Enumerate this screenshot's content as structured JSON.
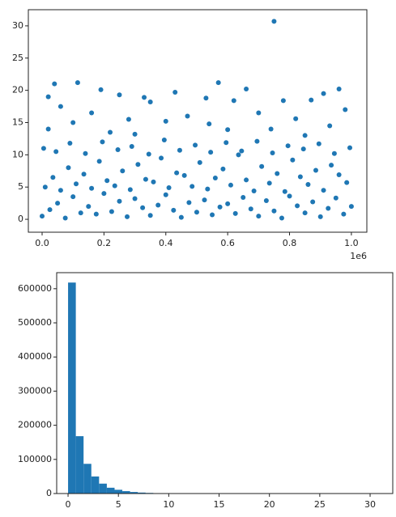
{
  "chart_data": [
    {
      "type": "scatter",
      "color": "#1f77b4",
      "x_offset_label": "1e6",
      "xlim": [
        -44500,
        1050000
      ],
      "ylim": [
        -2,
        32.5
      ],
      "xticks": [
        {
          "value": 0,
          "label": "0.0"
        },
        {
          "value": 200000,
          "label": "0.2"
        },
        {
          "value": 400000,
          "label": "0.4"
        },
        {
          "value": 600000,
          "label": "0.6"
        },
        {
          "value": 800000,
          "label": "0.8"
        },
        {
          "value": 1000000,
          "label": "1.0"
        }
      ],
      "yticks": [
        0,
        5,
        10,
        15,
        20,
        25,
        30
      ],
      "x": [
        750000,
        570000,
        115000,
        40000,
        960000,
        660000,
        190000,
        430000,
        20000,
        250000,
        330000,
        530000,
        780000,
        870000,
        620000,
        910000,
        350000,
        980000,
        60000,
        160000,
        470000,
        700000,
        280000,
        820000,
        100000,
        400000,
        540000,
        930000,
        20000,
        600000,
        740000,
        220000,
        300000,
        850000,
        0,
        25000,
        50000,
        75000,
        100000,
        125000,
        150000,
        175000,
        200000,
        225000,
        250000,
        275000,
        300000,
        325000,
        350000,
        375000,
        400000,
        425000,
        450000,
        475000,
        500000,
        525000,
        550000,
        575000,
        600000,
        625000,
        650000,
        675000,
        700000,
        725000,
        750000,
        775000,
        800000,
        825000,
        850000,
        875000,
        900000,
        925000,
        950000,
        975000,
        1000000,
        10000,
        35000,
        60000,
        85000,
        110000,
        135000,
        160000,
        185000,
        210000,
        235000,
        260000,
        285000,
        310000,
        335000,
        360000,
        385000,
        410000,
        435000,
        460000,
        485000,
        510000,
        535000,
        560000,
        585000,
        610000,
        635000,
        660000,
        685000,
        710000,
        735000,
        760000,
        785000,
        810000,
        835000,
        860000,
        885000,
        910000,
        935000,
        960000,
        985000,
        5000,
        45000,
        90000,
        140000,
        195000,
        245000,
        290000,
        345000,
        395000,
        445000,
        495000,
        545000,
        595000,
        645000,
        695000,
        745000,
        795000,
        845000,
        895000,
        945000,
        995000
      ],
      "y": [
        30.7,
        21.2,
        21.2,
        21,
        20.2,
        20.2,
        20.1,
        19.7,
        19,
        19.3,
        18.9,
        18.8,
        18.4,
        18.5,
        18.4,
        19.5,
        18.2,
        17,
        17.5,
        16.5,
        16,
        16.5,
        15.5,
        15.6,
        15,
        15.2,
        14.8,
        14.5,
        14,
        13.9,
        14,
        13.5,
        13.2,
        13,
        0.5,
        1.5,
        2.5,
        0.2,
        3.5,
        1,
        2,
        0.8,
        4,
        1.2,
        2.8,
        0.4,
        3.2,
        1.8,
        0.6,
        2.2,
        3.8,
        1.4,
        0.3,
        2.6,
        1.1,
        3,
        0.7,
        1.9,
        2.4,
        0.9,
        3.4,
        1.6,
        0.5,
        2.9,
        1.3,
        0.2,
        3.6,
        2.1,
        1,
        2.7,
        0.4,
        1.7,
        3.3,
        0.8,
        2,
        5,
        6.5,
        4.5,
        8,
        5.5,
        7,
        4.8,
        9,
        6,
        5.2,
        7.5,
        4.6,
        8.5,
        6.2,
        5.8,
        9.5,
        4.9,
        7.2,
        6.8,
        5.1,
        8.8,
        4.7,
        6.4,
        7.8,
        5.3,
        10,
        6.1,
        4.4,
        8.2,
        5.6,
        7.1,
        4.3,
        9.2,
        6.6,
        5.4,
        7.6,
        4.5,
        8.4,
        6.9,
        5.7,
        11,
        10.5,
        11.8,
        10.2,
        12,
        10.8,
        11.3,
        10.1,
        12.3,
        10.7,
        11.5,
        10.4,
        11.9,
        10.6,
        12.1,
        10.3,
        11.4,
        10.9,
        11.7,
        10.2,
        11.1
      ]
    },
    {
      "type": "histogram",
      "color": "#1f77b4",
      "xlim": [
        -1.13,
        32.25
      ],
      "ylim": [
        0,
        647000
      ],
      "xticks": [
        0,
        5,
        10,
        15,
        20,
        25,
        30
      ],
      "yticks": [
        0,
        100000,
        200000,
        300000,
        400000,
        500000,
        600000
      ],
      "bins": [
        0,
        0.77,
        1.54,
        2.31,
        3.08,
        3.85,
        4.62,
        5.39,
        6.16,
        6.93,
        7.7,
        8.47,
        9.24,
        10.01,
        10.78,
        11.55,
        12.32,
        13.09,
        13.86,
        14.63,
        15.4,
        16.17,
        16.94,
        17.71,
        18.48,
        19.25,
        20.02,
        20.79,
        21.56,
        22.33,
        23.1,
        23.87,
        24.64,
        25.41,
        26.18,
        26.95,
        27.72,
        28.49,
        29.26,
        30.03,
        30.8
      ],
      "counts": [
        618000,
        168000,
        87000,
        50000,
        29000,
        17000,
        11000,
        7000,
        4500,
        2800,
        1800,
        1100,
        700,
        450,
        280,
        180,
        110,
        70,
        45,
        28,
        18,
        11,
        7,
        4,
        3,
        2,
        1,
        1,
        1,
        0,
        0,
        0,
        0,
        0,
        0,
        0,
        0,
        0,
        0,
        1
      ]
    }
  ]
}
